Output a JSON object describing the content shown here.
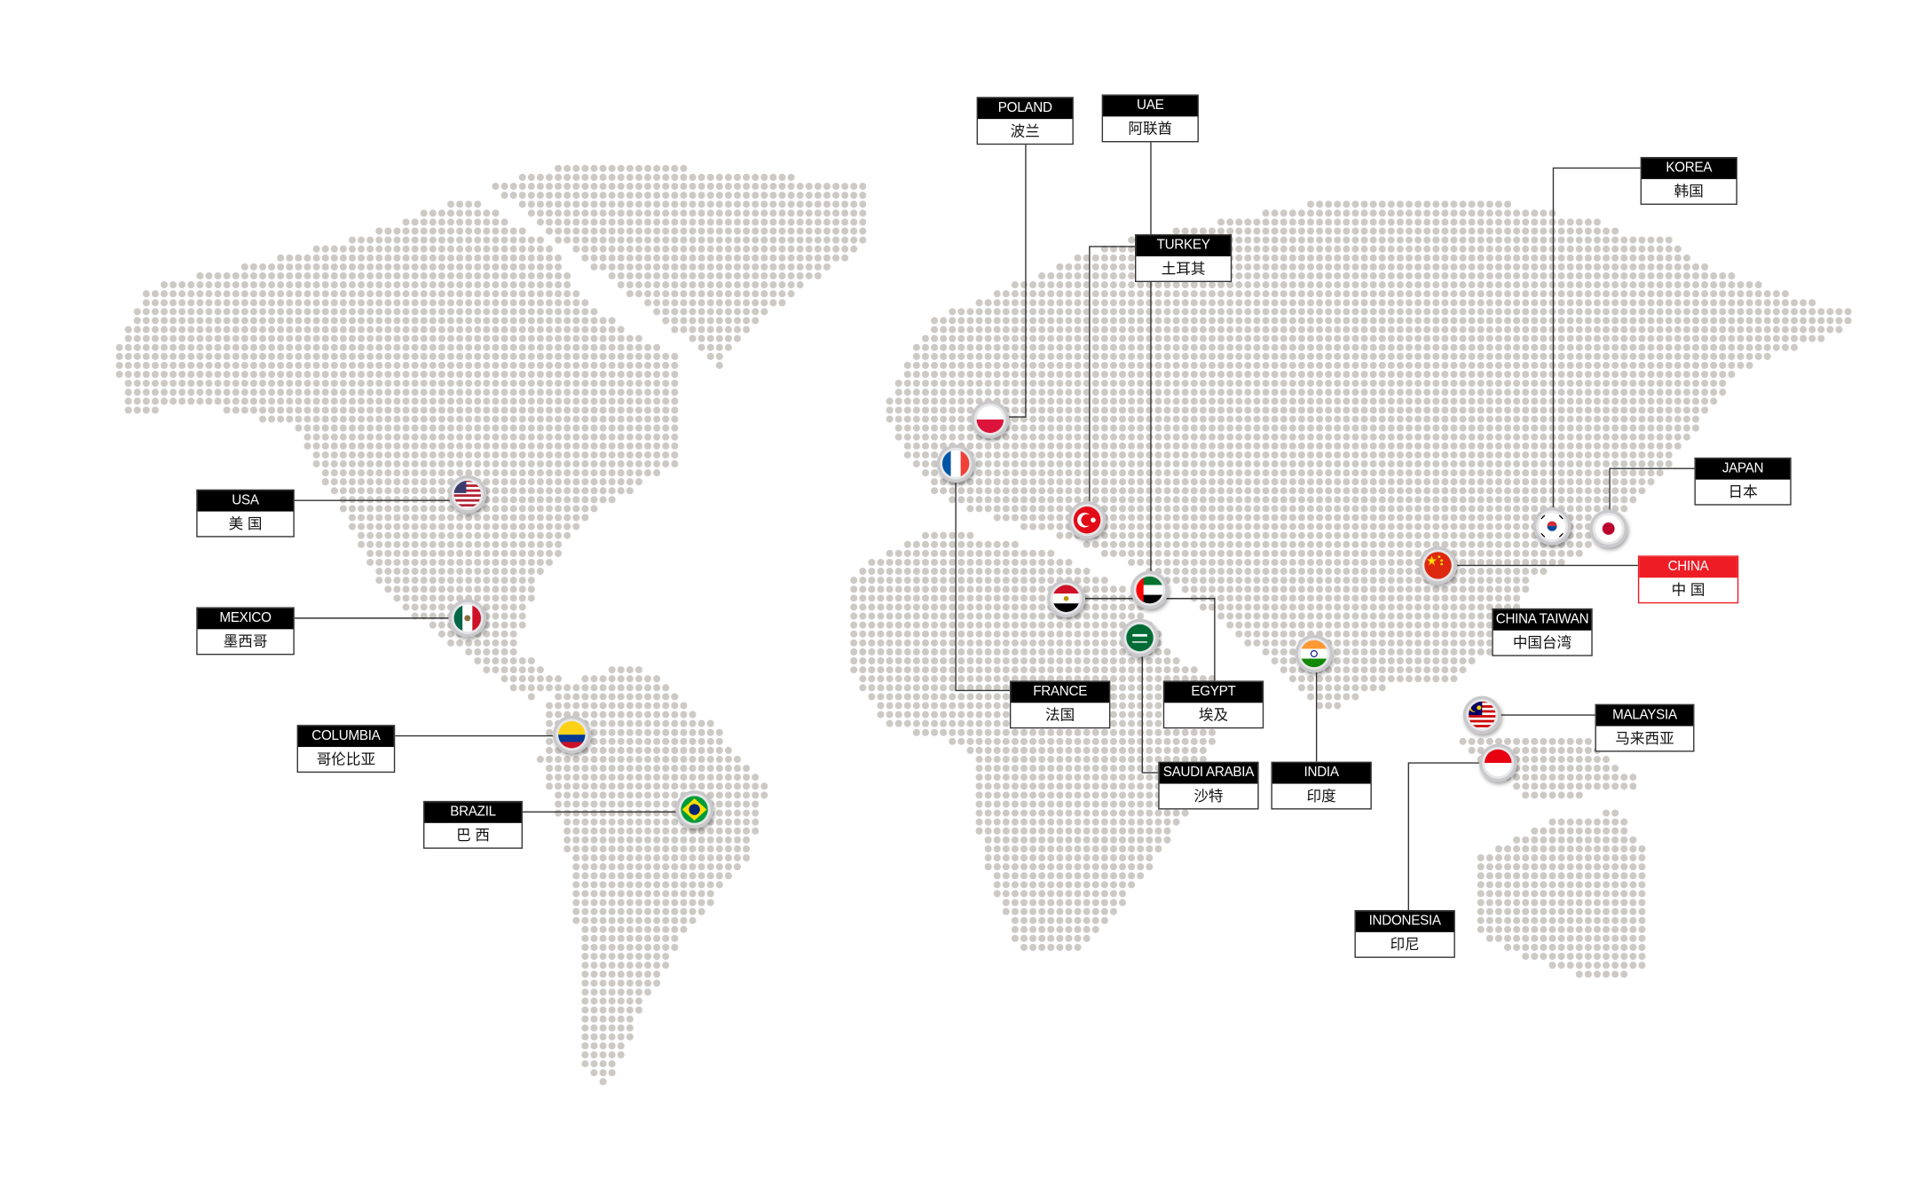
{
  "colors": {
    "dot": "#cdc9c5",
    "highlight": "#ee1c25",
    "label_bg": "#000000",
    "line": "#333333"
  },
  "labels": {
    "poland": {
      "en": "POLAND",
      "cn": "波兰"
    },
    "uae": {
      "en": "UAE",
      "cn": "阿联酋"
    },
    "turkey": {
      "en": "TURKEY",
      "cn": "土耳其"
    },
    "korea": {
      "en": "KOREA",
      "cn": "韩国"
    },
    "japan": {
      "en": "JAPAN",
      "cn": "日本"
    },
    "china": {
      "en": "CHINA",
      "cn": "中 国"
    },
    "china_taiwan": {
      "en": "CHINA TAIWAN",
      "cn": "中国台湾"
    },
    "malaysia": {
      "en": "MALAYSIA",
      "cn": "马来西亚"
    },
    "indonesia": {
      "en": "INDONESIA",
      "cn": "印尼"
    },
    "india": {
      "en": "INDIA",
      "cn": "印度"
    },
    "saudi_arabia": {
      "en": "SAUDI ARABIA",
      "cn": "沙特"
    },
    "egypt": {
      "en": "EGYPT",
      "cn": "埃及"
    },
    "france": {
      "en": "FRANCE",
      "cn": "法国"
    },
    "usa": {
      "en": "USA",
      "cn": "美 国"
    },
    "mexico": {
      "en": "MEXICO",
      "cn": "墨西哥"
    },
    "columbia": {
      "en": "COLUMBIA",
      "cn": "哥伦比亚"
    },
    "brazil": {
      "en": "BRAZIL",
      "cn": "巴 西"
    }
  },
  "flags": [
    "poland-flag-icon",
    "france-flag-icon",
    "turkey-flag-icon",
    "egypt-flag-icon",
    "uae-flag-icon",
    "saudi-arabia-flag-icon",
    "india-flag-icon",
    "usa-flag-icon",
    "mexico-flag-icon",
    "colombia-flag-icon",
    "brazil-flag-icon",
    "china-flag-icon",
    "korea-flag-icon",
    "japan-flag-icon",
    "malaysia-flag-icon",
    "indonesia-flag-icon"
  ]
}
